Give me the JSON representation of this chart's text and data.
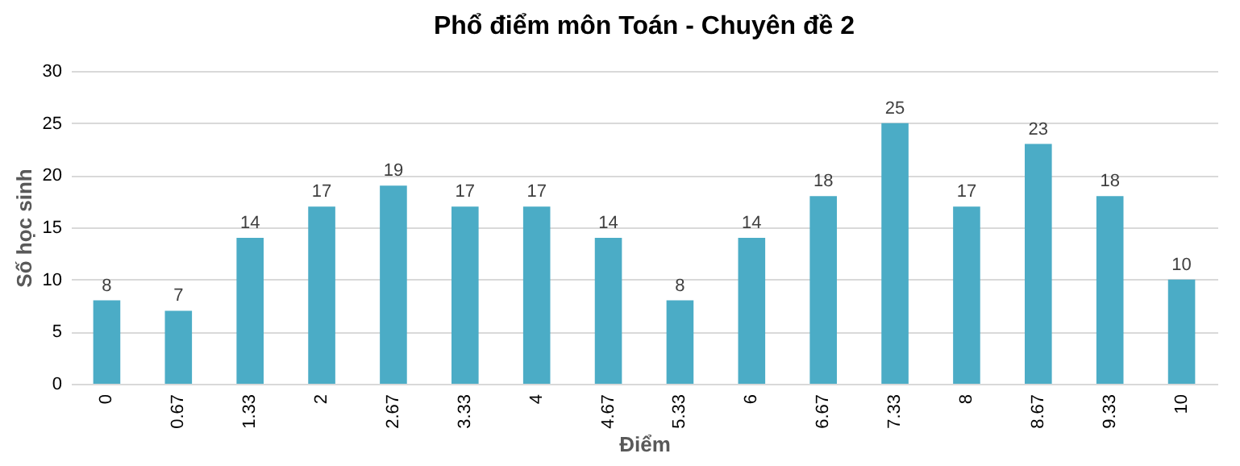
{
  "chart_data": {
    "type": "bar",
    "title": "Phổ điểm môn Toán - Chuyên đề 2",
    "xlabel": "Điểm",
    "ylabel": "Số học sinh",
    "categories": [
      "0",
      "0.67",
      "1.33",
      "2",
      "2.67",
      "3.33",
      "4",
      "4.67",
      "5.33",
      "6",
      "6.67",
      "7.33",
      "8",
      "8.67",
      "9.33",
      "10"
    ],
    "values": [
      8,
      7,
      14,
      17,
      19,
      17,
      17,
      14,
      8,
      14,
      18,
      25,
      17,
      23,
      18,
      10
    ],
    "color": "#4bacc6",
    "ylim": [
      0,
      30
    ],
    "yticks": [
      0,
      5,
      10,
      15,
      20,
      25,
      30
    ],
    "grid": "y",
    "data_labels": true
  }
}
